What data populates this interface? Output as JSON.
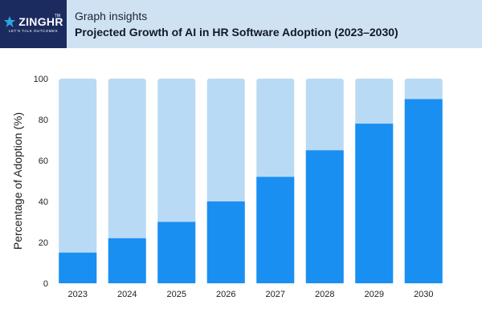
{
  "brand": {
    "name": "ZINGHR",
    "trademark": "TM",
    "tagline": "LET'S TALK OUTCOMES"
  },
  "header": {
    "kicker": "Graph insights",
    "title": "Projected Growth of AI in HR Software Adoption (2023–2030)"
  },
  "colors": {
    "header_bg": "#cfe2f3",
    "logo_bg": "#1b2b5f",
    "bar_value": "#1a8ff2",
    "bar_remainder": "#b9daf4",
    "axis_text": "#222222"
  },
  "chart_data": {
    "type": "bar",
    "stacked_to": 100,
    "categories": [
      "2023",
      "2024",
      "2025",
      "2026",
      "2027",
      "2028",
      "2029",
      "2030"
    ],
    "values": [
      15,
      22,
      30,
      40,
      52,
      65,
      78,
      90
    ],
    "ylabel": "Percentage of Adoption (%)",
    "xlabel": "",
    "ylim": [
      0,
      100
    ],
    "yticks": [
      0,
      20,
      40,
      60,
      80,
      100
    ],
    "grid": false,
    "legend": "none"
  }
}
